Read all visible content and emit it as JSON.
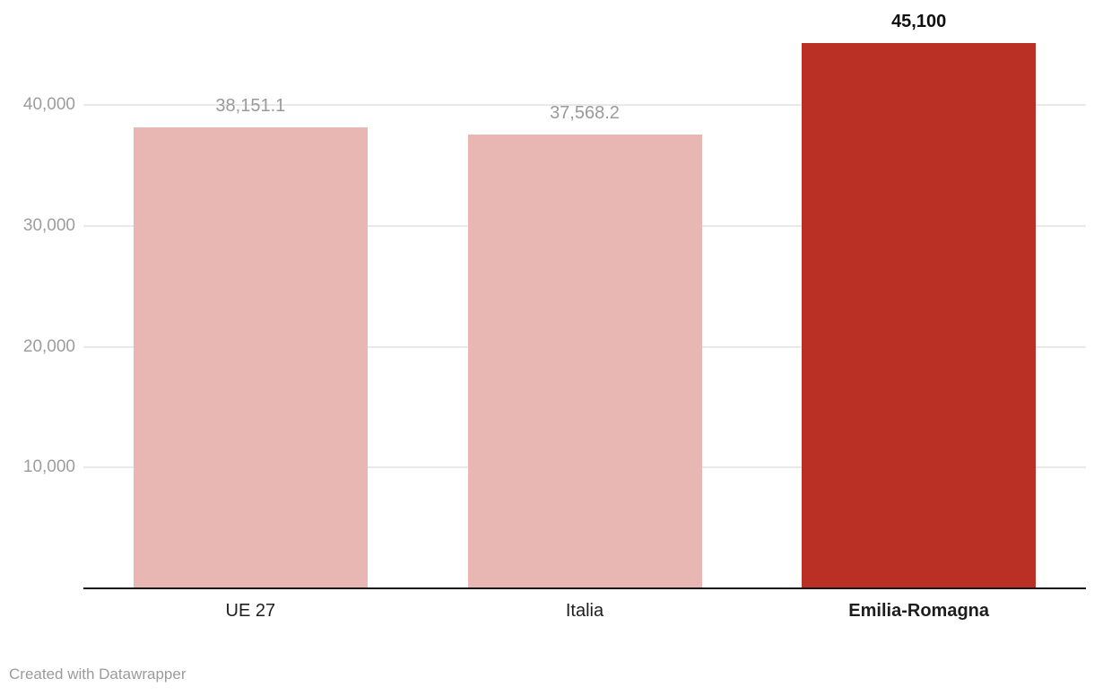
{
  "footer": {
    "attribution": "Created with Datawrapper"
  },
  "colors": {
    "bar_default": "#e8b7b3",
    "bar_highlight": "#bb3025",
    "value_label_default": "#9a9a9a",
    "value_label_highlight": "#0f0f0f",
    "gridline": "#e9e9e9",
    "axis_line": "#161616",
    "ytick_label": "#9d9d9d",
    "category_label": "#1d1d1d"
  },
  "chart_data": {
    "type": "bar",
    "title": "",
    "xlabel": "",
    "ylabel": "",
    "categories": [
      "UE 27",
      "Italia",
      "Emilia-Romagna"
    ],
    "values": [
      38151.1,
      37568.2,
      45100
    ],
    "value_labels": [
      "38,151.1",
      "37,568.2",
      "45,100"
    ],
    "highlighted_index": 2,
    "ylim": [
      0,
      45100
    ],
    "yticks": [
      10000,
      20000,
      30000,
      40000
    ],
    "ytick_labels": [
      "10,000",
      "20,000",
      "30,000",
      "40,000"
    ],
    "grid": true,
    "legend": false
  }
}
